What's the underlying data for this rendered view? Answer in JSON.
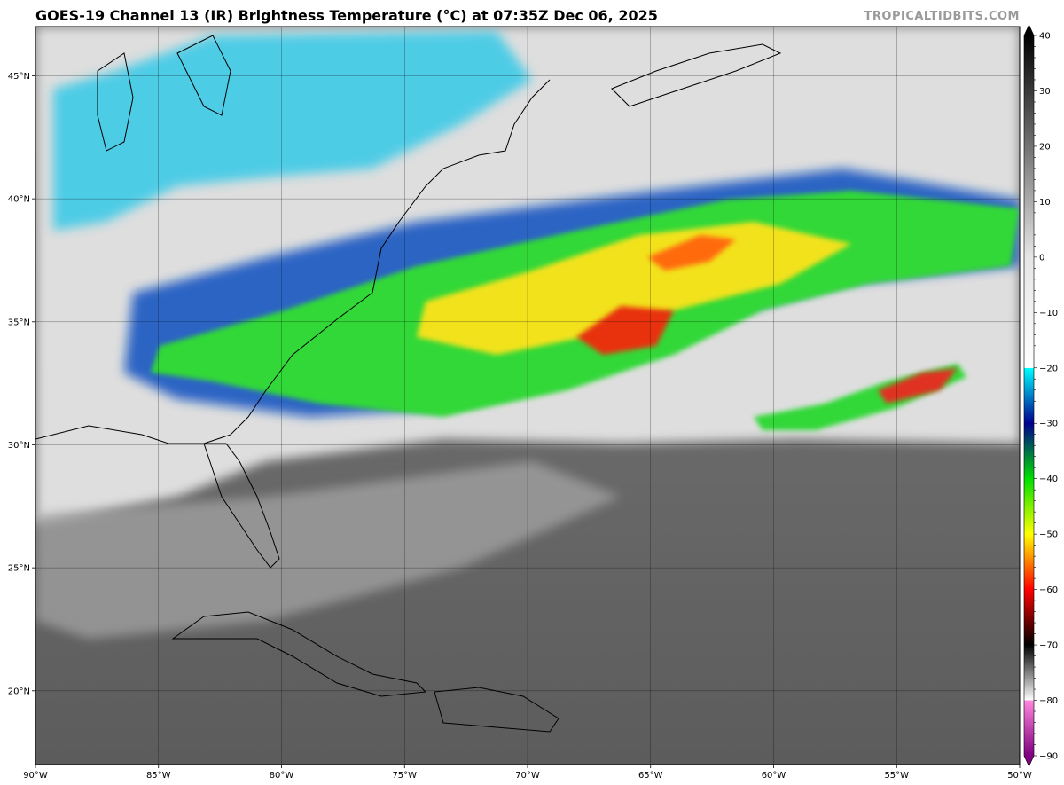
{
  "header": {
    "title": "GOES-19 Channel 13 (IR) Brightness Temperature (°C) at 07:35Z Dec 06, 2025",
    "brand": "TROPICALTIDBITS.COM"
  },
  "map": {
    "lon_range": [
      -90,
      -50
    ],
    "lat_range": [
      17,
      47
    ],
    "lon_ticks": [
      {
        "value": -90,
        "label": "90°W"
      },
      {
        "value": -85,
        "label": "85°W"
      },
      {
        "value": -80,
        "label": "80°W"
      },
      {
        "value": -75,
        "label": "75°W"
      },
      {
        "value": -70,
        "label": "70°W"
      },
      {
        "value": -65,
        "label": "65°W"
      },
      {
        "value": -60,
        "label": "60°W"
      },
      {
        "value": -55,
        "label": "55°W"
      },
      {
        "value": -50,
        "label": "50°W"
      }
    ],
    "lat_ticks": [
      {
        "value": 45,
        "label": "45°N"
      },
      {
        "value": 40,
        "label": "40°N"
      },
      {
        "value": 35,
        "label": "35°N"
      },
      {
        "value": 30,
        "label": "30°N"
      },
      {
        "value": 25,
        "label": "25°N"
      },
      {
        "value": 20,
        "label": "20°N"
      }
    ],
    "grid": true
  },
  "colorbar": {
    "range": [
      -90,
      40
    ],
    "ticks": [
      {
        "value": 40,
        "label": "40"
      },
      {
        "value": 30,
        "label": "30"
      },
      {
        "value": 20,
        "label": "20"
      },
      {
        "value": 10,
        "label": "10"
      },
      {
        "value": 0,
        "label": "0"
      },
      {
        "value": -10,
        "label": "−10"
      },
      {
        "value": -20,
        "label": "−20"
      },
      {
        "value": -30,
        "label": "−30"
      },
      {
        "value": -40,
        "label": "−40"
      },
      {
        "value": -50,
        "label": "−50"
      },
      {
        "value": -60,
        "label": "−60"
      },
      {
        "value": -70,
        "label": "−70"
      },
      {
        "value": -80,
        "label": "−80"
      },
      {
        "value": -90,
        "label": "−90"
      }
    ],
    "stops": [
      {
        "t": 40,
        "color": "#000000"
      },
      {
        "t": 0,
        "color": "#e6e6e6"
      },
      {
        "t": -20,
        "color": "#ffffff"
      },
      {
        "t": -20.01,
        "color": "#00ffff"
      },
      {
        "t": -30,
        "color": "#000090"
      },
      {
        "t": -40,
        "color": "#00e000"
      },
      {
        "t": -50,
        "color": "#ffff00"
      },
      {
        "t": -60,
        "color": "#ff0000"
      },
      {
        "t": -70,
        "color": "#000000"
      },
      {
        "t": -80,
        "color": "#ffffff"
      },
      {
        "t": -80.01,
        "color": "#ff88dd"
      },
      {
        "t": -90,
        "color": "#800080"
      }
    ]
  }
}
